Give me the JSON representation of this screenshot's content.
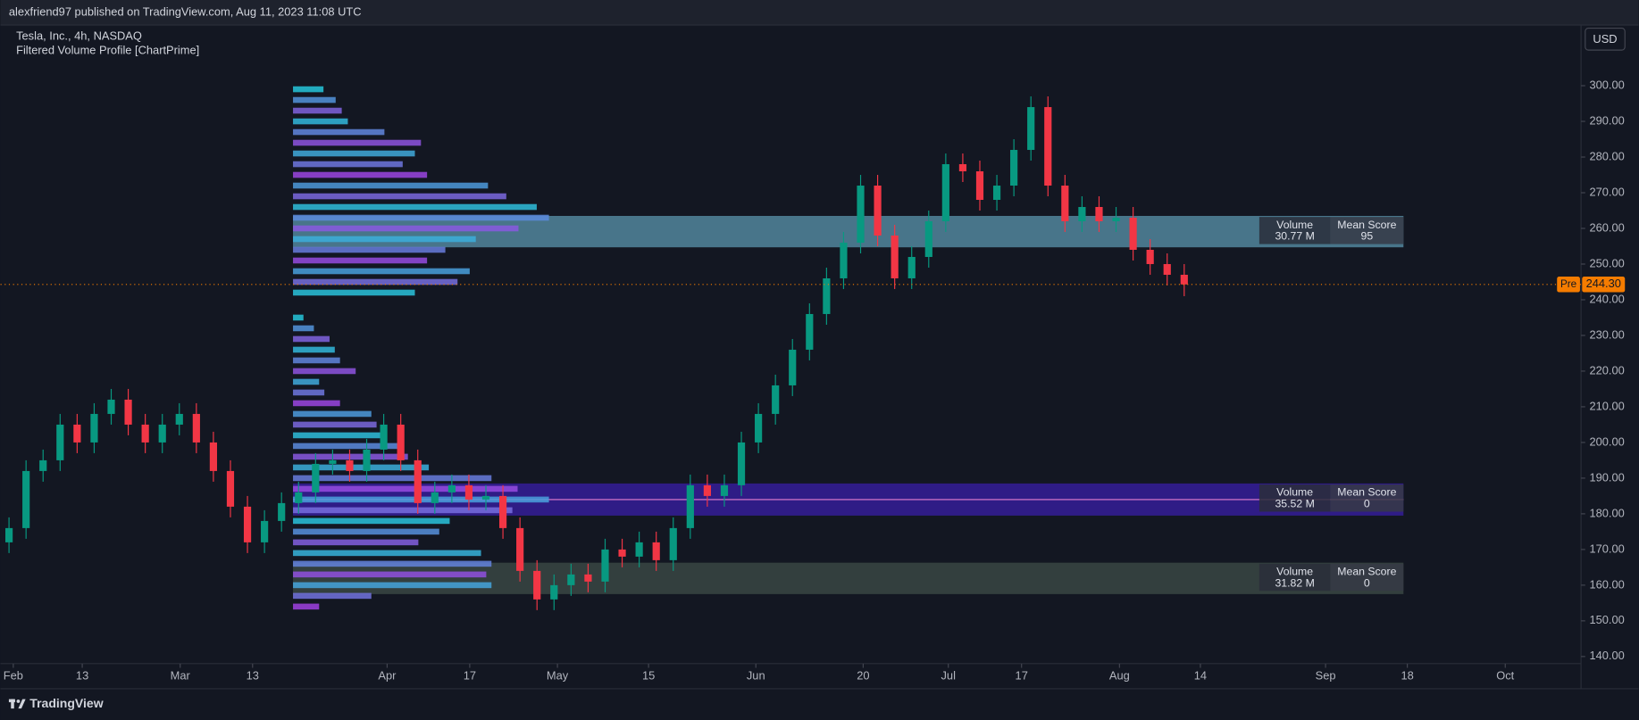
{
  "header": {
    "publisher": "alexfriend97 published on TradingView.com, Aug 11, 2023 11:08 UTC",
    "brand": "TradingView"
  },
  "chart_data": {
    "type": "candlestick",
    "title": "Tesla, Inc., 4h, NASDAQ",
    "subtitle": "Filtered Volume Profile [ChartPrime]",
    "currency": "USD",
    "up_color": "#089981",
    "down_color": "#f23645",
    "xlim": [
      0,
      185.6
    ],
    "ylim": [
      138,
      317
    ],
    "xticks": [
      {
        "value": 1.5,
        "label": "Feb"
      },
      {
        "value": 9.6,
        "label": "13"
      },
      {
        "value": 21.1,
        "label": "Mar"
      },
      {
        "value": 29.6,
        "label": "13"
      },
      {
        "value": 45.4,
        "label": "Apr"
      },
      {
        "value": 55.1,
        "label": "17"
      },
      {
        "value": 65.4,
        "label": "May"
      },
      {
        "value": 76.1,
        "label": "15"
      },
      {
        "value": 88.7,
        "label": "Jun"
      },
      {
        "value": 101.3,
        "label": "20"
      },
      {
        "value": 111.3,
        "label": "Jul"
      },
      {
        "value": 119.9,
        "label": "17"
      },
      {
        "value": 131.4,
        "label": "Aug"
      },
      {
        "value": 140.9,
        "label": "14"
      },
      {
        "value": 155.6,
        "label": "Sep"
      },
      {
        "value": 165.2,
        "label": "18"
      },
      {
        "value": 176.7,
        "label": "Oct"
      }
    ],
    "yticks": [
      {
        "value": 140,
        "label": "140.00"
      },
      {
        "value": 150,
        "label": "150.00"
      },
      {
        "value": 160,
        "label": "160.00"
      },
      {
        "value": 170,
        "label": "170.00"
      },
      {
        "value": 180,
        "label": "180.00"
      },
      {
        "value": 190,
        "label": "190.00"
      },
      {
        "value": 200,
        "label": "200.00"
      },
      {
        "value": 210,
        "label": "210.00"
      },
      {
        "value": 220,
        "label": "220.00"
      },
      {
        "value": 230,
        "label": "230.00"
      },
      {
        "value": 240,
        "label": "240.00"
      },
      {
        "value": 250,
        "label": "250.00"
      },
      {
        "value": 260,
        "label": "260.00"
      },
      {
        "value": 270,
        "label": "270.00"
      },
      {
        "value": 280,
        "label": "280.00"
      },
      {
        "value": 290,
        "label": "290.00"
      },
      {
        "value": 300,
        "label": "300.00"
      }
    ],
    "last_price": {
      "value": 244.3,
      "label": "244.30",
      "session": "Pre",
      "color": "#f57c00"
    },
    "x": [
      1,
      3,
      5,
      7,
      9,
      11,
      13,
      15,
      17,
      19,
      21,
      23,
      25,
      27,
      29,
      31,
      33,
      35,
      37,
      39,
      41,
      43,
      45,
      47,
      49,
      51,
      53,
      55,
      57,
      59,
      61,
      63,
      65,
      67,
      69,
      71,
      73,
      75,
      77,
      79,
      81,
      83,
      85,
      87,
      89,
      91,
      93,
      95,
      97,
      99,
      101,
      103,
      105,
      107,
      109,
      111,
      113,
      115,
      117,
      119,
      121,
      123,
      125,
      127,
      129,
      131,
      133,
      135,
      137,
      139
    ],
    "open": [
      172,
      176,
      192,
      195,
      205,
      200,
      208,
      212,
      205,
      200,
      205,
      208,
      200,
      192,
      182,
      172,
      178,
      183,
      186,
      194,
      195,
      192,
      198,
      205,
      195,
      183,
      186,
      188,
      184,
      185,
      176,
      164,
      156,
      160,
      163,
      161,
      170,
      168,
      172,
      167,
      176,
      188,
      185,
      188,
      200,
      208,
      216,
      226,
      236,
      246,
      256,
      272,
      258,
      246,
      252,
      262,
      278,
      276,
      268,
      272,
      282,
      294,
      272,
      262,
      266,
      262,
      263,
      254,
      250,
      247
    ],
    "high": [
      179,
      195,
      198,
      208,
      208,
      211,
      215,
      215,
      208,
      208,
      211,
      211,
      203,
      195,
      185,
      181,
      186,
      189,
      197,
      198,
      198,
      201,
      208,
      208,
      198,
      189,
      191,
      191,
      188,
      188,
      179,
      167,
      163,
      166,
      166,
      173,
      173,
      175,
      175,
      179,
      191,
      191,
      191,
      203,
      211,
      219,
      229,
      239,
      249,
      259,
      275,
      275,
      261,
      255,
      265,
      281,
      281,
      279,
      275,
      285,
      297,
      297,
      275,
      269,
      269,
      266,
      266,
      257,
      253,
      250
    ],
    "low": [
      169,
      173,
      189,
      192,
      197,
      197,
      205,
      202,
      197,
      197,
      202,
      197,
      189,
      179,
      169,
      169,
      175,
      180,
      183,
      191,
      189,
      189,
      195,
      192,
      180,
      180,
      183,
      181,
      181,
      173,
      161,
      153,
      153,
      157,
      158,
      158,
      165,
      165,
      164,
      164,
      173,
      182,
      182,
      185,
      197,
      205,
      213,
      223,
      233,
      243,
      253,
      255,
      243,
      243,
      249,
      259,
      273,
      265,
      265,
      269,
      279,
      269,
      259,
      259,
      259,
      259,
      251,
      247,
      244,
      241
    ],
    "close": [
      176,
      192,
      195,
      205,
      200,
      208,
      212,
      205,
      200,
      205,
      208,
      200,
      192,
      182,
      172,
      178,
      183,
      186,
      194,
      195,
      192,
      198,
      205,
      195,
      183,
      186,
      188,
      184,
      185,
      176,
      164,
      156,
      160,
      163,
      161,
      170,
      168,
      172,
      167,
      176,
      188,
      185,
      188,
      200,
      208,
      216,
      226,
      236,
      246,
      256,
      272,
      258,
      246,
      252,
      262,
      278,
      276,
      268,
      272,
      282,
      294,
      272,
      262,
      266,
      262,
      263,
      254,
      250,
      247,
      244.3
    ],
    "profiles": [
      {
        "colors": [
          "#26c6da",
          "#a040e0"
        ],
        "levels": [
          299,
          296,
          293,
          290,
          287,
          284,
          281,
          278,
          275,
          272,
          269,
          266,
          263,
          260,
          257,
          254,
          251,
          248,
          245,
          242
        ],
        "volumes": [
          25,
          35,
          40,
          45,
          75,
          105,
          100,
          90,
          110,
          160,
          175,
          200,
          210,
          185,
          150,
          125,
          110,
          145,
          135,
          100
        ]
      },
      {
        "colors": [
          "#26c6da",
          "#a040e0"
        ],
        "levels": [
          235,
          232,
          229,
          226,
          223,
          220,
          217,
          214,
          211,
          208,
          205,
          202,
          199,
          196,
          193,
          190,
          187,
          184,
          181,
          178,
          175,
          172,
          169,
          166,
          163,
          160,
          157,
          154
        ],
        "volumes": [
          10,
          20,
          35,
          40,
          45,
          60,
          25,
          30,
          45,
          75,
          80,
          85,
          100,
          110,
          130,
          190,
          215,
          245,
          210,
          150,
          140,
          120,
          180,
          190,
          185,
          190,
          75,
          25
        ]
      }
    ],
    "zone_headers": [
      "Volume",
      "Mean Score"
    ],
    "zones": [
      {
        "low": 254.7,
        "high": 263.5,
        "color": "#5b95ad",
        "volume": 30.77,
        "volume_label": "30.77 M",
        "score": 95
      },
      {
        "low": 179.5,
        "high": 188.5,
        "color": "#3a1fa8",
        "volume": 35.52,
        "volume_label": "35.52 M",
        "score": 0,
        "line": 184
      },
      {
        "low": 157.5,
        "high": 166.3,
        "color": "#3f4d48",
        "volume": 31.82,
        "volume_label": "31.82 M",
        "score": 0
      }
    ]
  }
}
